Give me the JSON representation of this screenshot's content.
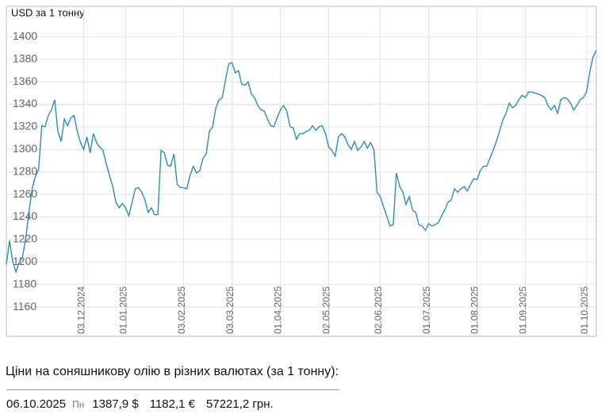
{
  "chart_data": {
    "type": "line",
    "y_label": "USD за 1 тонну",
    "color": "#2b8cbe",
    "grid": true,
    "ylim": [
      1134,
      1427
    ],
    "yticks": [
      1160,
      1180,
      1200,
      1220,
      1240,
      1260,
      1280,
      1300,
      1320,
      1340,
      1360,
      1380,
      1400
    ],
    "categories": [
      null,
      null,
      null,
      null,
      null,
      null,
      null,
      null,
      null,
      null,
      null,
      null,
      null,
      null,
      null,
      null,
      null,
      null,
      null,
      null,
      null,
      null,
      null,
      null,
      "03.12.2024",
      null,
      null,
      null,
      null,
      null,
      null,
      null,
      null,
      null,
      null,
      null,
      null,
      "01.01.2025",
      null,
      null,
      null,
      null,
      null,
      null,
      null,
      null,
      null,
      null,
      null,
      null,
      null,
      null,
      null,
      null,
      null,
      "03.02.2025",
      null,
      null,
      null,
      null,
      null,
      null,
      null,
      null,
      null,
      null,
      null,
      null,
      null,
      null,
      "03.03.2025",
      null,
      null,
      null,
      null,
      null,
      null,
      null,
      null,
      null,
      null,
      null,
      null,
      null,
      null,
      "01.04.2025",
      null,
      null,
      null,
      null,
      null,
      null,
      null,
      null,
      null,
      null,
      null,
      null,
      null,
      null,
      "02.05.2025",
      null,
      null,
      null,
      null,
      null,
      null,
      null,
      null,
      null,
      null,
      null,
      null,
      null,
      null,
      null,
      "02.06.2025",
      null,
      null,
      null,
      null,
      null,
      null,
      null,
      null,
      null,
      null,
      null,
      null,
      null,
      null,
      "01.07.2025",
      null,
      null,
      null,
      null,
      null,
      null,
      null,
      null,
      null,
      null,
      null,
      null,
      null,
      null,
      "01.08.2025",
      null,
      null,
      null,
      null,
      null,
      null,
      null,
      null,
      null,
      null,
      null,
      null,
      null,
      null,
      "01.09.2025",
      null,
      null,
      null,
      null,
      null,
      null,
      null,
      null,
      null,
      null,
      null,
      null,
      null,
      null,
      null,
      null,
      null,
      null,
      "01.10.2025",
      null,
      null,
      null
    ],
    "values": [
      1198,
      1219,
      1200,
      1191,
      1200,
      1204,
      1221,
      1244,
      1265,
      1276,
      1282,
      1321,
      1320,
      1330,
      1335,
      1344,
      1316,
      1307,
      1327,
      1321,
      1328,
      1330,
      1316,
      1306,
      1300,
      1311,
      1297,
      1314,
      1306,
      1302,
      1299,
      1287,
      1277,
      1267,
      1253,
      1248,
      1252,
      1248,
      1241,
      1253,
      1265,
      1266,
      1262,
      1255,
      1244,
      1248,
      1242,
      1242,
      1299,
      1297,
      1286,
      1285,
      1296,
      1269,
      1266,
      1266,
      1265,
      1277,
      1285,
      1279,
      1281,
      1292,
      1296,
      1316,
      1320,
      1337,
      1344,
      1346,
      1362,
      1376,
      1377,
      1368,
      1370,
      1358,
      1357,
      1360,
      1349,
      1346,
      1339,
      1335,
      1334,
      1327,
      1321,
      1320,
      1328,
      1335,
      1339,
      1334,
      1320,
      1319,
      1309,
      1314,
      1314,
      1316,
      1317,
      1321,
      1317,
      1320,
      1321,
      1314,
      1302,
      1299,
      1294,
      1311,
      1314,
      1311,
      1304,
      1300,
      1307,
      1299,
      1302,
      1307,
      1301,
      1306,
      1300,
      1262,
      1258,
      1249,
      1241,
      1232,
      1233,
      1279,
      1267,
      1262,
      1251,
      1258,
      1246,
      1244,
      1233,
      1232,
      1228,
      1234,
      1232,
      1233,
      1235,
      1241,
      1246,
      1253,
      1255,
      1265,
      1262,
      1265,
      1267,
      1263,
      1269,
      1274,
      1273,
      1281,
      1285,
      1285,
      1292,
      1299,
      1307,
      1316,
      1326,
      1332,
      1341,
      1337,
      1339,
      1344,
      1348,
      1346,
      1351,
      1351,
      1350,
      1349,
      1348,
      1346,
      1339,
      1335,
      1339,
      1332,
      1344,
      1346,
      1345,
      1341,
      1335,
      1339,
      1344,
      1346,
      1351,
      1369,
      1382,
      1388
    ]
  },
  "prices": {
    "title": "Ціни на соняшникову олію в різних валютах (за 1 тонну):",
    "rows": [
      {
        "date": "06.10.2025",
        "weekday": "Пн",
        "usd": "1387,9 $",
        "eur": "1182,1 €",
        "uah": "57221,2 грн."
      }
    ]
  }
}
